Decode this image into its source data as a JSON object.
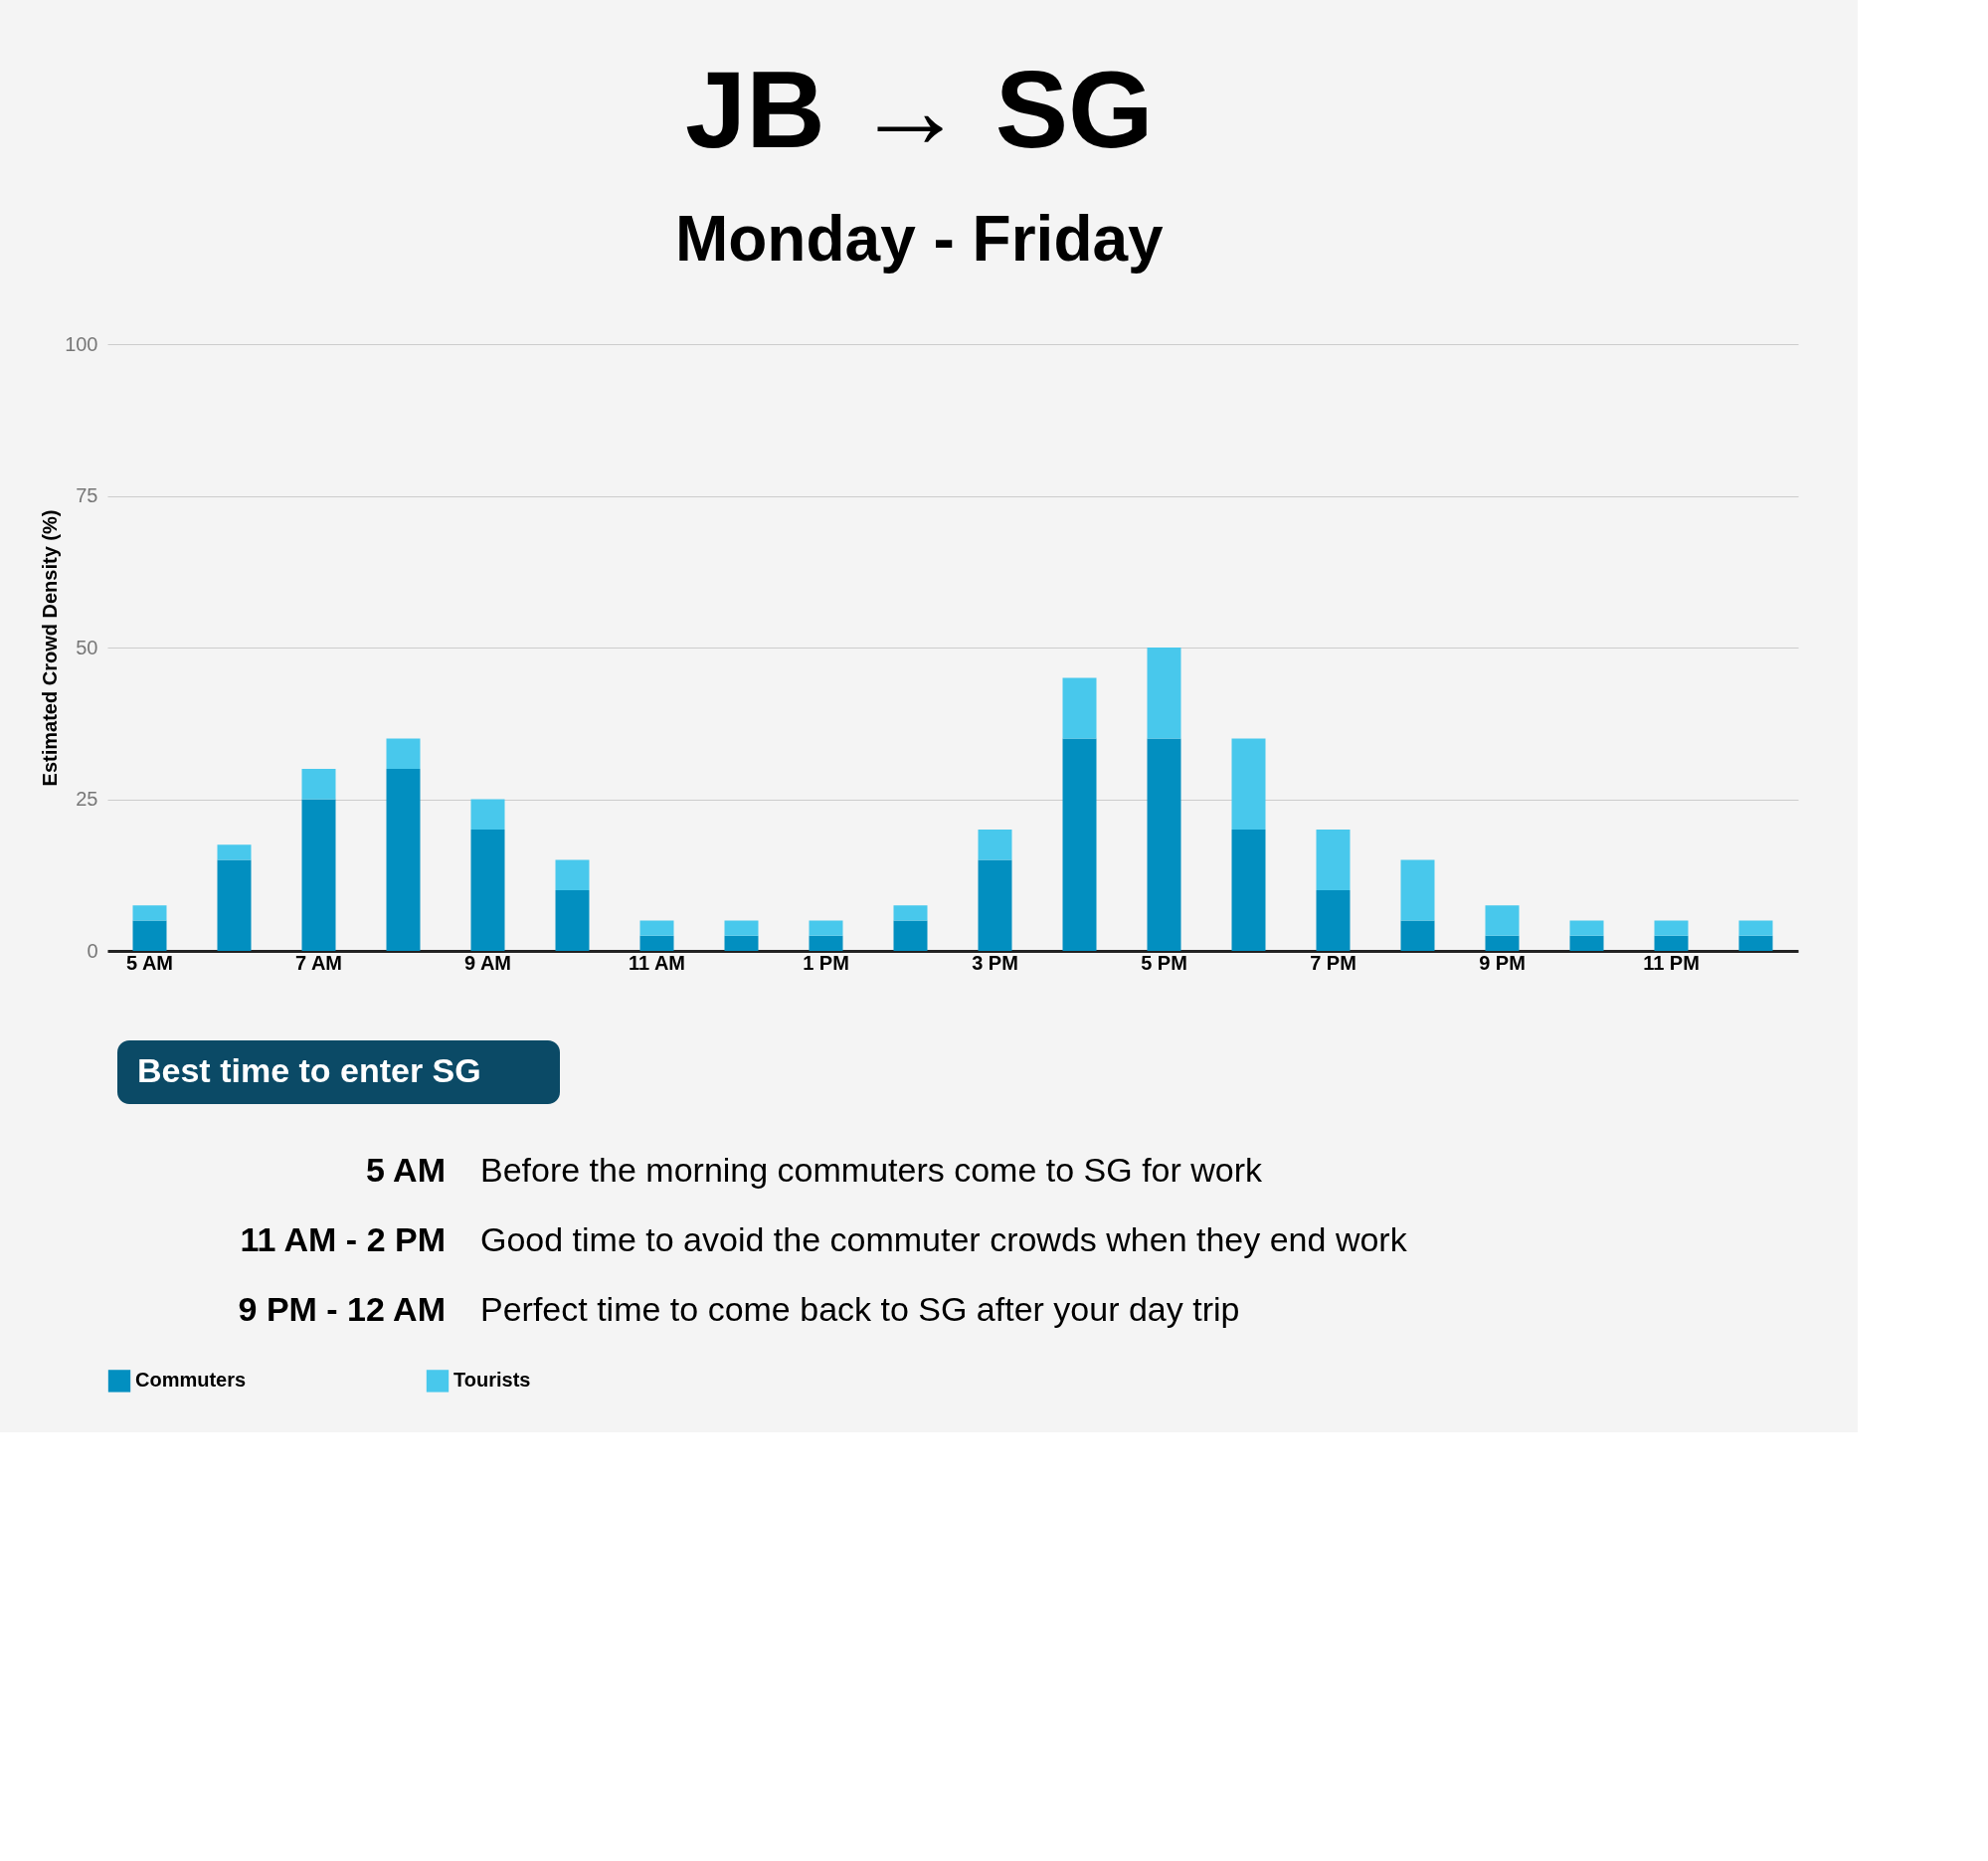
{
  "chart_data": {
    "type": "bar",
    "title": "JB → SG",
    "subtitle": "Monday - Friday",
    "ylabel": "Estimated Crowd Density (%)",
    "categories": [
      "5 AM",
      null,
      "7 AM",
      null,
      "9 AM",
      null,
      "11 AM",
      null,
      "1 PM",
      null,
      "3 PM",
      null,
      "5 PM",
      null,
      "7 PM",
      null,
      "9 PM",
      null,
      "11 PM",
      null
    ],
    "series": [
      {
        "name": "Commuters",
        "color": "#028fc0",
        "values": [
          5,
          15,
          25,
          30,
          20,
          10,
          2.5,
          2.5,
          2.5,
          5,
          15,
          35,
          35,
          20,
          10,
          5,
          2.5,
          2.5,
          2.5,
          2.5
        ]
      },
      {
        "name": "Tourists",
        "color": "#48c8ec",
        "values": [
          2.5,
          2.5,
          5,
          5,
          5,
          5,
          2.5,
          2.5,
          2.5,
          2.5,
          5,
          10,
          15,
          15,
          10,
          10,
          5,
          2.5,
          2.5,
          2.5
        ]
      }
    ],
    "stacked": true,
    "ylim": [
      0,
      100
    ],
    "yticks": [
      0,
      25,
      50,
      75,
      100
    ],
    "grid": "y",
    "legend": "bottom",
    "annotations": [
      "Best time to enter SG",
      "5 AM",
      "Before the morning commuters come to SG for work",
      "11 AM - 2 PM",
      "Good time to avoid the commuter crowds when they end work",
      "9 PM - 12 AM",
      "Perfect time to come back to SG after your day trip"
    ]
  }
}
